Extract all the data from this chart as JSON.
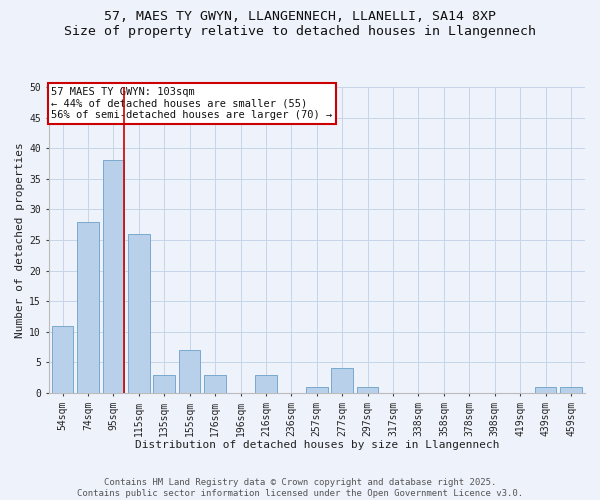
{
  "title": "57, MAES TY GWYN, LLANGENNECH, LLANELLI, SA14 8XP",
  "subtitle": "Size of property relative to detached houses in Llangennech",
  "xlabel": "Distribution of detached houses by size in Llangennech",
  "ylabel": "Number of detached properties",
  "bar_labels": [
    "54sqm",
    "74sqm",
    "95sqm",
    "115sqm",
    "135sqm",
    "155sqm",
    "176sqm",
    "196sqm",
    "216sqm",
    "236sqm",
    "257sqm",
    "277sqm",
    "297sqm",
    "317sqm",
    "338sqm",
    "358sqm",
    "378sqm",
    "398sqm",
    "419sqm",
    "439sqm",
    "459sqm"
  ],
  "bar_values": [
    11,
    28,
    38,
    26,
    3,
    7,
    3,
    0,
    3,
    0,
    1,
    4,
    1,
    0,
    0,
    0,
    0,
    0,
    0,
    1,
    1
  ],
  "bar_color": "#b8d0ea",
  "bar_edge_color": "#6ca0c8",
  "background_color": "#eef2fa",
  "grid_color": "#c5d5e8",
  "vline_color": "#cc0000",
  "vline_x": 2.42,
  "annotation_lines": [
    "57 MAES TY GWYN: 103sqm",
    "← 44% of detached houses are smaller (55)",
    "56% of semi-detached houses are larger (70) →"
  ],
  "annotation_box_color": "#cc0000",
  "ylim": [
    0,
    50
  ],
  "yticks": [
    0,
    5,
    10,
    15,
    20,
    25,
    30,
    35,
    40,
    45,
    50
  ],
  "footer_line1": "Contains HM Land Registry data © Crown copyright and database right 2025.",
  "footer_line2": "Contains public sector information licensed under the Open Government Licence v3.0.",
  "title_fontsize": 9.5,
  "xlabel_fontsize": 8,
  "ylabel_fontsize": 8,
  "tick_fontsize": 7,
  "annotation_fontsize": 7.5,
  "footer_fontsize": 6.5
}
